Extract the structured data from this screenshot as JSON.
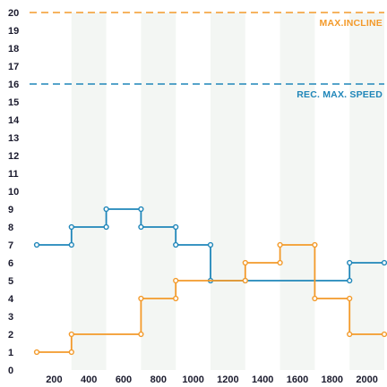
{
  "chart_data": {
    "type": "line",
    "step": true,
    "title": "",
    "xlabel": "",
    "ylabel": "",
    "xlim": [
      100,
      2100
    ],
    "ylim": [
      0,
      20
    ],
    "x_ticks": [
      200,
      400,
      600,
      800,
      1000,
      1200,
      1400,
      1600,
      1800,
      2000
    ],
    "x_tick_labels": [
      "200",
      "400",
      "600",
      "800",
      "1000",
      "1200",
      "1400",
      "1600",
      "1800",
      "2000"
    ],
    "y_ticks": [
      0,
      1,
      2,
      3,
      4,
      5,
      6,
      7,
      8,
      9,
      10,
      11,
      12,
      13,
      14,
      15,
      16,
      17,
      18,
      19,
      20
    ],
    "y_tick_labels": [
      "0",
      "1",
      "2",
      "3",
      "4",
      "5",
      "6",
      "7",
      "8",
      "9",
      "10",
      "11",
      "12",
      "13",
      "14",
      "15",
      "16",
      "17",
      "18",
      "19",
      "20"
    ],
    "grid": "alternating vertical bands",
    "reference_lines": [
      {
        "label": "MAX.INCLINE",
        "y": 20,
        "color": "#f39a2a"
      },
      {
        "label": "REC. MAX. SPEED",
        "y": 16,
        "color": "#1f86b9"
      }
    ],
    "series": [
      {
        "color": "#1f86b9",
        "points": [
          [
            100,
            7
          ],
          [
            300,
            7
          ],
          [
            300,
            8
          ],
          [
            500,
            8
          ],
          [
            500,
            9
          ],
          [
            700,
            9
          ],
          [
            700,
            8
          ],
          [
            900,
            8
          ],
          [
            900,
            7
          ],
          [
            1100,
            7
          ],
          [
            1100,
            5
          ],
          [
            1300,
            5
          ],
          [
            1900,
            5
          ],
          [
            1900,
            6
          ],
          [
            2100,
            6
          ]
        ]
      },
      {
        "color": "#f39a2a",
        "points": [
          [
            100,
            1
          ],
          [
            300,
            1
          ],
          [
            300,
            2
          ],
          [
            700,
            2
          ],
          [
            700,
            4
          ],
          [
            900,
            4
          ],
          [
            900,
            5
          ],
          [
            1300,
            5
          ],
          [
            1300,
            6
          ],
          [
            1500,
            6
          ],
          [
            1500,
            7
          ],
          [
            1700,
            7
          ],
          [
            1700,
            4
          ],
          [
            1900,
            4
          ],
          [
            1900,
            2
          ],
          [
            2100,
            2
          ]
        ]
      }
    ]
  }
}
